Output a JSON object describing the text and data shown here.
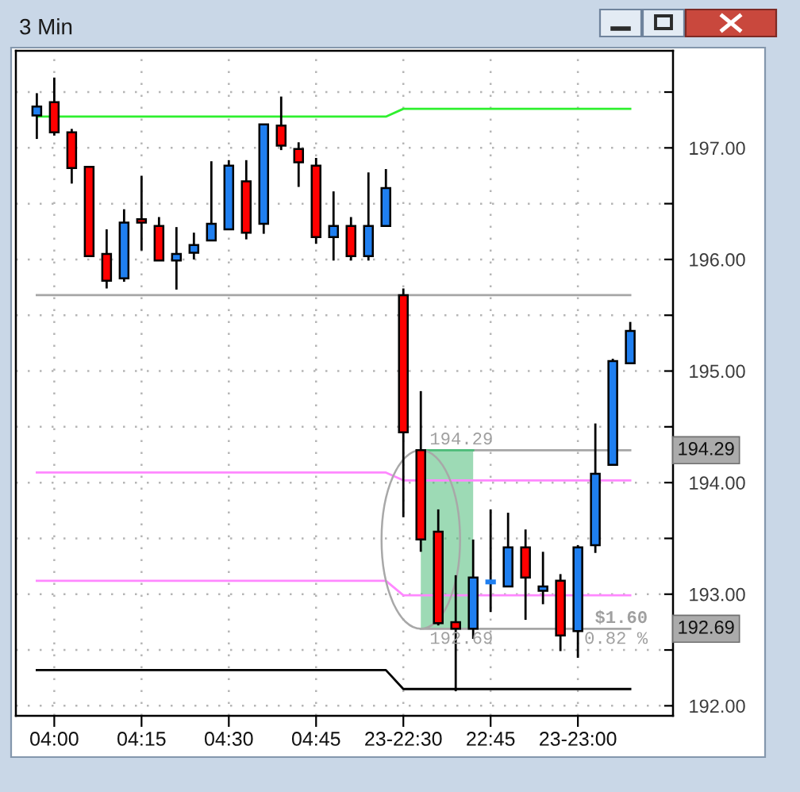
{
  "chart_data": {
    "type": "candlestick",
    "title": "3 Min",
    "categories": [
      null,
      "04:00",
      null,
      null,
      null,
      null,
      "04:15",
      null,
      null,
      null,
      null,
      "04:30",
      null,
      null,
      null,
      null,
      "04:45",
      null,
      null,
      null,
      null,
      "23-22:30",
      null,
      null,
      null,
      null,
      "22:45",
      null,
      null,
      null,
      null,
      "23-23:00",
      null,
      null,
      null
    ],
    "ohlc": [
      [
        197.29,
        197.49,
        197.08,
        197.37
      ],
      [
        197.41,
        197.63,
        197.11,
        197.14
      ],
      [
        197.14,
        197.17,
        196.68,
        196.82
      ],
      [
        196.83,
        196.83,
        196.03,
        196.03
      ],
      [
        196.05,
        196.27,
        195.74,
        195.81
      ],
      [
        195.83,
        196.45,
        195.8,
        196.33
      ],
      [
        196.36,
        196.75,
        196.08,
        196.33
      ],
      [
        196.3,
        196.38,
        195.99,
        195.99
      ],
      [
        195.99,
        196.29,
        195.73,
        196.05
      ],
      [
        196.06,
        196.24,
        196.0,
        196.13
      ],
      [
        196.17,
        196.88,
        196.17,
        196.32
      ],
      [
        196.27,
        196.89,
        196.27,
        196.84
      ],
      [
        196.7,
        196.89,
        196.18,
        196.24
      ],
      [
        196.32,
        197.21,
        196.23,
        197.21
      ],
      [
        197.2,
        197.46,
        196.98,
        197.02
      ],
      [
        196.99,
        197.05,
        196.65,
        196.87
      ],
      [
        196.84,
        196.91,
        196.14,
        196.2
      ],
      [
        196.2,
        196.61,
        195.99,
        196.3
      ],
      [
        196.3,
        196.38,
        195.99,
        196.03
      ],
      [
        196.03,
        196.78,
        195.99,
        196.3
      ],
      [
        196.3,
        196.81,
        196.3,
        196.64
      ],
      [
        195.68,
        195.74,
        193.69,
        194.45
      ],
      [
        194.29,
        194.82,
        193.38,
        193.49
      ],
      [
        193.56,
        193.76,
        192.72,
        192.74
      ],
      [
        192.75,
        193.17,
        192.13,
        192.69
      ],
      [
        192.69,
        193.49,
        192.6,
        193.15
      ],
      [
        193.11,
        193.76,
        192.84,
        193.11
      ],
      [
        193.07,
        193.73,
        193.07,
        193.42
      ],
      [
        193.42,
        193.58,
        192.77,
        193.15
      ],
      [
        193.03,
        193.38,
        192.91,
        193.07
      ],
      [
        193.12,
        193.18,
        192.49,
        192.63
      ],
      [
        192.67,
        193.44,
        192.43,
        193.42
      ],
      [
        193.44,
        194.53,
        193.37,
        194.08
      ],
      [
        194.16,
        195.11,
        194.16,
        195.09
      ],
      [
        195.07,
        195.44,
        195.07,
        195.36
      ]
    ],
    "colors": [
      "#1f7ff0",
      "#ff0000",
      "#ff0000",
      "#ff0000",
      "#ff0000",
      "#1f7ff0",
      "#ff0000",
      "#ff0000",
      "#1f7ff0",
      "#1f7ff0",
      "#1f7ff0",
      "#1f7ff0",
      "#ff0000",
      "#1f7ff0",
      "#ff0000",
      "#ff0000",
      "#ff0000",
      "#1f7ff0",
      "#ff0000",
      "#1f7ff0",
      "#1f7ff0",
      "#ff0000",
      "#ff0000",
      "#ff0000",
      "#ff0000",
      "#1f7ff0",
      "#1f7ff0",
      "#1f7ff0",
      "#ff0000",
      "#1f7ff0",
      "#ff0000",
      "#1f7ff0",
      "#1f7ff0",
      "#1f7ff0",
      "#1f7ff0"
    ],
    "series": [
      {
        "type": "line",
        "color": "#2ef02e",
        "values": [
          197.28,
          197.28,
          197.28,
          197.28,
          197.28,
          197.28,
          197.28,
          197.28,
          197.28,
          197.28,
          197.28,
          197.28,
          197.28,
          197.28,
          197.28,
          197.28,
          197.28,
          197.28,
          197.28,
          197.28,
          197.28,
          197.35,
          197.35,
          197.35,
          197.35,
          197.35,
          197.35,
          197.35,
          197.35,
          197.35,
          197.35,
          197.35,
          197.35,
          197.35,
          197.35
        ]
      },
      {
        "type": "line",
        "color": "#a6a6a6",
        "values": [
          195.68,
          195.68,
          195.68,
          195.68,
          195.68,
          195.68,
          195.68,
          195.68,
          195.68,
          195.68,
          195.68,
          195.68,
          195.68,
          195.68,
          195.68,
          195.68,
          195.68,
          195.68,
          195.68,
          195.68,
          195.68,
          195.68,
          195.68,
          195.68,
          195.68,
          195.68,
          195.68,
          195.68,
          195.68,
          195.68,
          195.68,
          195.68,
          195.68,
          195.68,
          195.68
        ]
      },
      {
        "type": "line",
        "color": "#ff88ff",
        "values": [
          194.09,
          194.09,
          194.09,
          194.09,
          194.09,
          194.09,
          194.09,
          194.09,
          194.09,
          194.09,
          194.09,
          194.09,
          194.09,
          194.09,
          194.09,
          194.09,
          194.09,
          194.09,
          194.09,
          194.09,
          194.09,
          194.02,
          194.02,
          194.02,
          194.02,
          194.02,
          194.02,
          194.02,
          194.02,
          194.02,
          194.02,
          194.02,
          194.02,
          194.02,
          194.02
        ]
      },
      {
        "type": "line",
        "color": "#ff88ff",
        "values": [
          193.12,
          193.12,
          193.12,
          193.12,
          193.12,
          193.12,
          193.12,
          193.12,
          193.12,
          193.12,
          193.12,
          193.12,
          193.12,
          193.12,
          193.12,
          193.12,
          193.12,
          193.12,
          193.12,
          193.12,
          193.12,
          192.99,
          192.99,
          192.99,
          192.99,
          192.99,
          192.99,
          192.99,
          192.99,
          192.99,
          192.99,
          192.99,
          192.99,
          192.99,
          192.99
        ]
      },
      {
        "type": "line",
        "color": "#000000",
        "values": [
          192.32,
          192.32,
          192.32,
          192.32,
          192.32,
          192.32,
          192.32,
          192.32,
          192.32,
          192.32,
          192.32,
          192.32,
          192.32,
          192.32,
          192.32,
          192.32,
          192.32,
          192.32,
          192.32,
          192.32,
          192.32,
          192.15,
          192.15,
          192.15,
          192.15,
          192.15,
          192.15,
          192.15,
          192.15,
          192.15,
          192.15,
          192.15,
          192.15,
          192.15,
          192.15
        ]
      },
      {
        "type": "line",
        "color": "#a6a6a6",
        "values": [
          null,
          null,
          null,
          null,
          null,
          null,
          null,
          null,
          null,
          null,
          null,
          null,
          null,
          null,
          null,
          null,
          null,
          null,
          null,
          null,
          null,
          null,
          null,
          null,
          null,
          194.29,
          194.29,
          194.29,
          194.29,
          194.29,
          194.29,
          194.29,
          194.29,
          194.29,
          194.29
        ]
      },
      {
        "type": "line",
        "color": "#a6a6a6",
        "values": [
          null,
          null,
          null,
          null,
          null,
          null,
          null,
          null,
          null,
          null,
          null,
          null,
          null,
          null,
          null,
          null,
          null,
          null,
          null,
          null,
          null,
          null,
          192.69,
          192.69,
          192.69,
          192.69,
          192.69,
          192.69,
          192.69,
          192.69,
          192.69,
          192.69,
          192.69,
          192.69,
          192.69
        ],
        "value_labels": [
          null,
          null,
          null,
          null,
          null,
          null,
          null,
          null,
          null,
          null,
          null,
          null,
          null,
          null,
          null,
          null,
          null,
          null,
          null,
          null,
          null,
          null,
          "192.69",
          null,
          null,
          null,
          null,
          null,
          null,
          null,
          null,
          null,
          null,
          null,
          null
        ]
      },
      {
        "type": "line",
        "color": "#4cbb78",
        "values": [
          null,
          null,
          null,
          null,
          null,
          null,
          null,
          null,
          null,
          null,
          null,
          null,
          null,
          null,
          null,
          null,
          null,
          null,
          null,
          null,
          null,
          null,
          194.29,
          194.29,
          194.29,
          194.29,
          null,
          null,
          null,
          null,
          null,
          null,
          null,
          null,
          null
        ],
        "lower": [
          null,
          null,
          null,
          null,
          null,
          null,
          null,
          null,
          null,
          null,
          null,
          null,
          null,
          null,
          null,
          null,
          null,
          null,
          null,
          null,
          null,
          null,
          192.69,
          192.69,
          192.69,
          192.69,
          null,
          null,
          null,
          null,
          null,
          null,
          null,
          null,
          null
        ],
        "upper": [
          null,
          null,
          null,
          null,
          null,
          null,
          null,
          null,
          null,
          null,
          null,
          null,
          null,
          null,
          null,
          null,
          null,
          null,
          null,
          null,
          null,
          null,
          194.29,
          194.29,
          194.29,
          194.29,
          null,
          null,
          null,
          null,
          null,
          null,
          null,
          null,
          null
        ],
        "value_labels": [
          null,
          null,
          null,
          null,
          null,
          null,
          null,
          null,
          null,
          null,
          null,
          null,
          null,
          null,
          null,
          null,
          null,
          null,
          null,
          null,
          null,
          null,
          "194.29",
          null,
          null,
          null,
          null,
          null,
          null,
          null,
          null,
          null,
          null,
          null,
          null
        ]
      }
    ],
    "ylim": [
      191.91,
      197.87
    ],
    "yticks": [
      {
        "value": 192,
        "label": "192.00"
      },
      {
        "value": 192.5,
        "label": null
      },
      {
        "value": 193,
        "label": "193.00"
      },
      {
        "value": 193.5,
        "label": null
      },
      {
        "value": 194,
        "label": "194.00"
      },
      {
        "value": 194.5,
        "label": null
      },
      {
        "value": 195,
        "label": "195.00"
      },
      {
        "value": 195.5,
        "label": null
      },
      {
        "value": 196,
        "label": "196.00"
      },
      {
        "value": 196.5,
        "label": null
      },
      {
        "value": 197,
        "label": "197.00"
      },
      {
        "value": 197.5,
        "label": null
      }
    ],
    "grid": true,
    "annotations": [
      {
        "text": "$1.60",
        "y": 192.69
      },
      {
        "text": "0.82 %",
        "y": 192.69
      }
    ]
  }
}
